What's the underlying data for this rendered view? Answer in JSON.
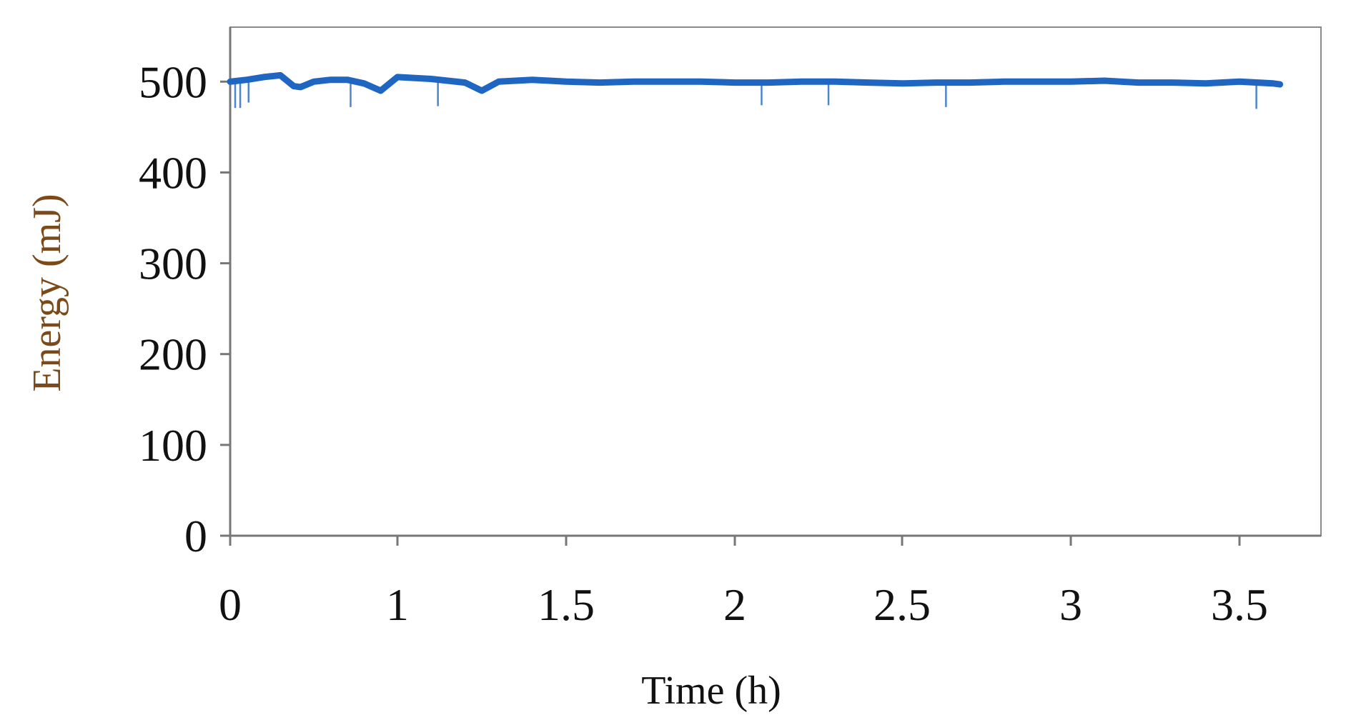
{
  "chart_data": {
    "type": "line",
    "title": "",
    "xlabel": "Time (h)",
    "ylabel": "Energy (mJ)",
    "xticks": [
      "0",
      "1",
      "1.5",
      "2",
      "2.5",
      "3",
      "3.5"
    ],
    "yticks": [
      "0",
      "100",
      "200",
      "300",
      "400",
      "500"
    ],
    "ylim": [
      0,
      560
    ],
    "grid": false,
    "legend": "none",
    "series": [
      {
        "color": "#1f66c2",
        "x": [
          0.0,
          0.1,
          0.2,
          0.3,
          0.38,
          0.42,
          0.5,
          0.6,
          0.7,
          0.8,
          0.9,
          1.0,
          1.1,
          1.2,
          1.25,
          1.3,
          1.4,
          1.5,
          1.6,
          1.7,
          1.8,
          1.9,
          2.0,
          2.1,
          2.2,
          2.3,
          2.4,
          2.5,
          2.6,
          2.7,
          2.8,
          2.9,
          3.0,
          3.1,
          3.2,
          3.3,
          3.4,
          3.5,
          3.6,
          3.62
        ],
        "y": [
          500,
          502,
          505,
          507,
          495,
          494,
          500,
          502,
          502,
          498,
          490,
          505,
          503,
          499,
          490,
          500,
          502,
          500,
          499,
          500,
          500,
          500,
          499,
          499,
          500,
          500,
          499,
          498,
          499,
          499,
          500,
          500,
          500,
          501,
          499,
          499,
          498,
          500,
          498,
          497
        ]
      }
    ],
    "dips": [
      {
        "x": 0.03,
        "y": 471
      },
      {
        "x": 0.06,
        "y": 471
      },
      {
        "x": 0.11,
        "y": 477
      },
      {
        "x": 0.72,
        "y": 472
      },
      {
        "x": 1.12,
        "y": 473
      },
      {
        "x": 2.08,
        "y": 474
      },
      {
        "x": 2.28,
        "y": 474
      },
      {
        "x": 2.63,
        "y": 472
      },
      {
        "x": 3.55,
        "y": 470
      }
    ]
  }
}
